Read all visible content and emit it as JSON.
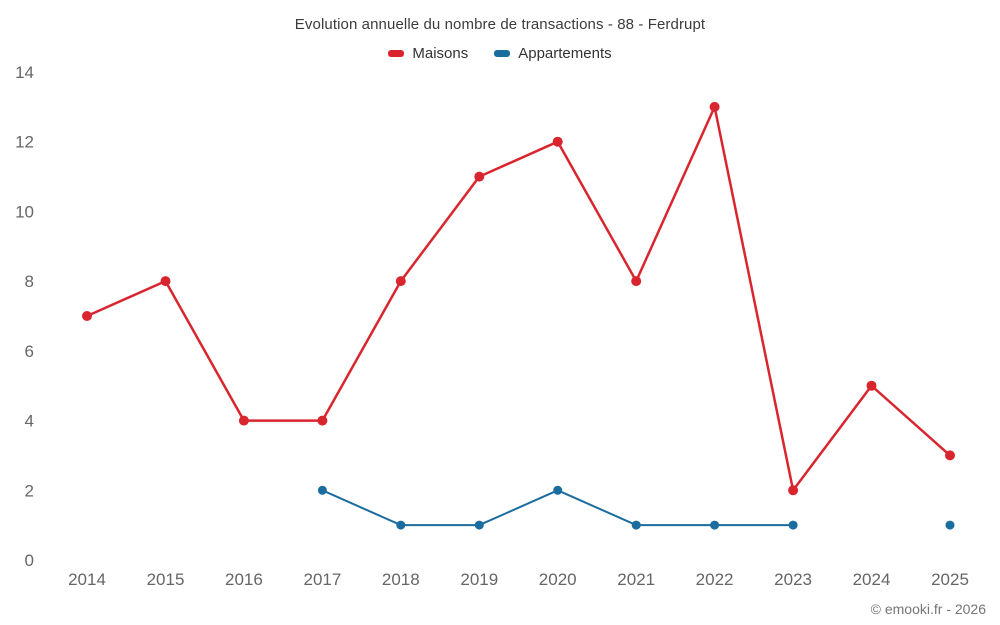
{
  "footer": {
    "copyright": "© emooki.fr - 2026"
  },
  "chart_data": {
    "type": "line",
    "title": "Evolution annuelle du nombre de transactions - 88 - Ferdrupt",
    "x": [
      2014,
      2015,
      2016,
      2017,
      2018,
      2019,
      2020,
      2021,
      2022,
      2023,
      2024,
      2025
    ],
    "series": [
      {
        "name": "Maisons",
        "color": "#d9262e",
        "values": [
          7,
          8,
          4,
          4,
          8,
          11,
          12,
          8,
          13,
          2,
          5,
          3
        ]
      },
      {
        "name": "Appartements",
        "color": "#1a6d9e",
        "values": [
          null,
          null,
          null,
          2,
          1,
          1,
          2,
          1,
          1,
          1,
          null,
          1
        ]
      }
    ],
    "xlabel": "",
    "ylabel": "",
    "ylim": [
      0,
      14
    ],
    "yticks": [
      0,
      2,
      4,
      6,
      8,
      10,
      12,
      14
    ],
    "grid": false,
    "legend_position": "top",
    "axis_label_color": "#666666"
  }
}
